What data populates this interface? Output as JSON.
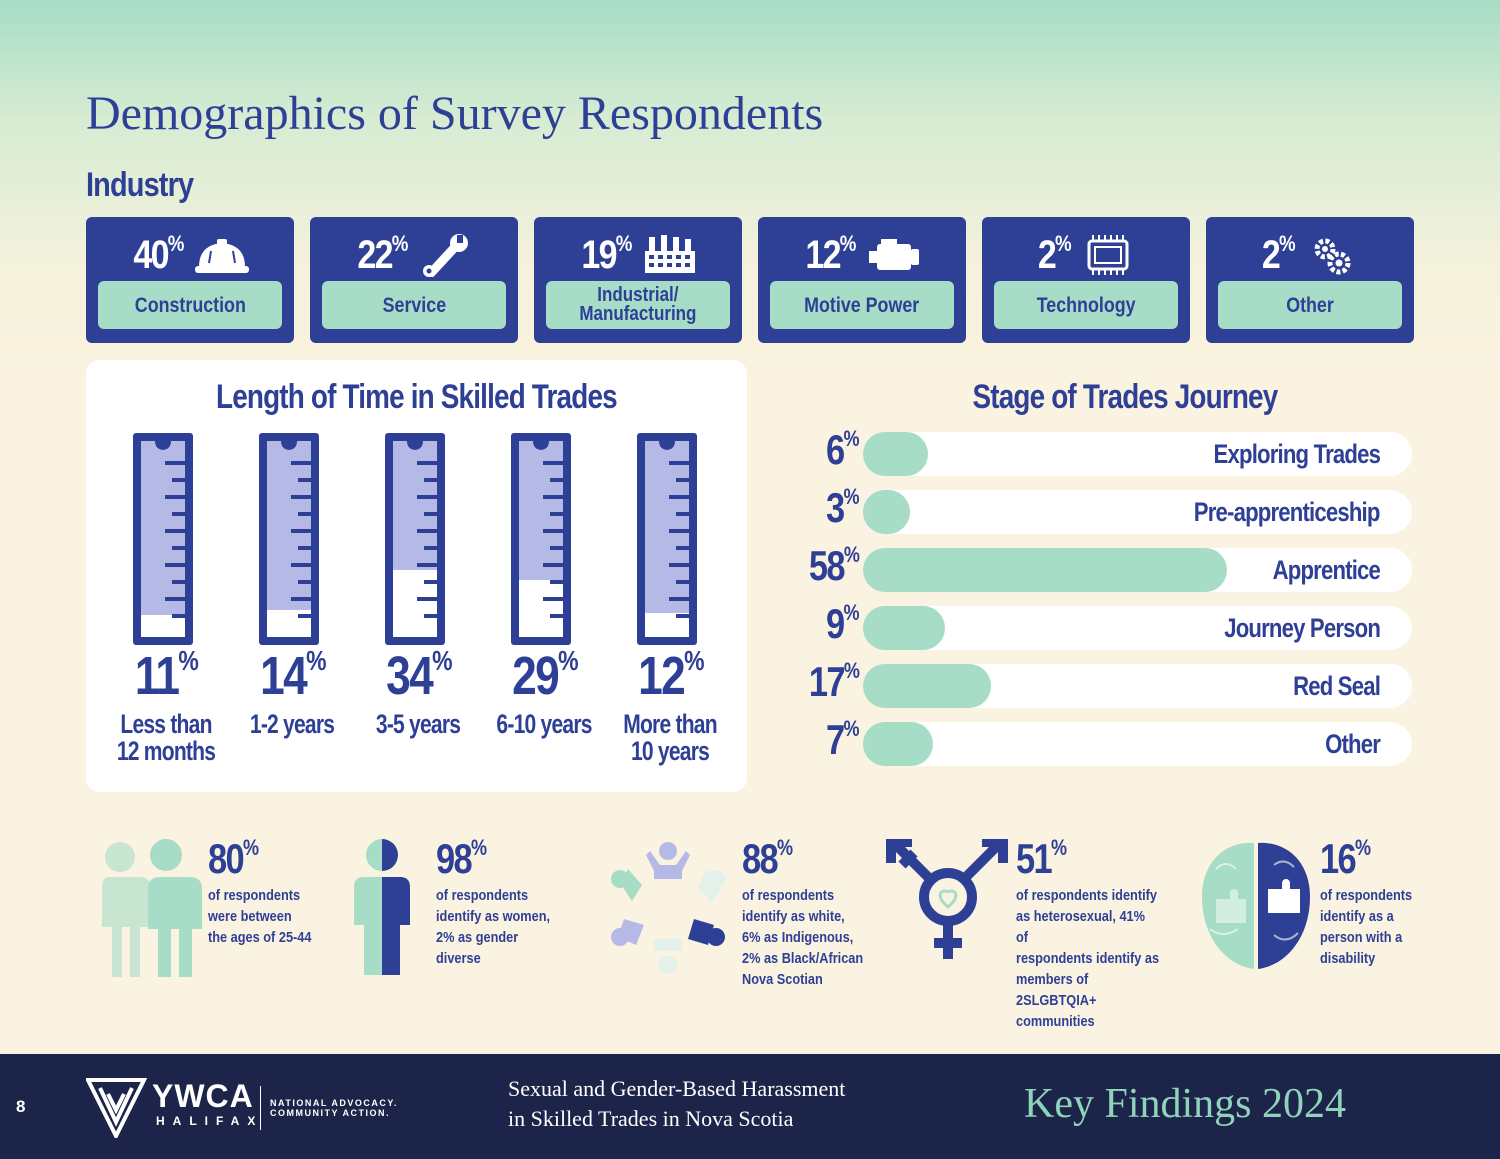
{
  "title": "Demographics of Survey Respondents",
  "industry": {
    "label": "Industry",
    "items": [
      {
        "pct": "40",
        "label": "Construction",
        "icon": "hard-hat-icon"
      },
      {
        "pct": "22",
        "label": "Service",
        "icon": "wrench-icon"
      },
      {
        "pct": "19",
        "label": "Industrial/\nManufacturing",
        "icon": "factory-icon"
      },
      {
        "pct": "12",
        "label": "Motive Power",
        "icon": "engine-icon"
      },
      {
        "pct": "2",
        "label": "Technology",
        "icon": "chip-icon"
      },
      {
        "pct": "2",
        "label": "Other",
        "icon": "gears-icon"
      }
    ]
  },
  "length_of_time": {
    "heading": "Length of Time in Skilled Trades",
    "items": [
      {
        "pct": "11",
        "value": 11,
        "label": "Less than\n12 months"
      },
      {
        "pct": "14",
        "value": 14,
        "label": "1-2 years"
      },
      {
        "pct": "34",
        "value": 34,
        "label": "3-5 years"
      },
      {
        "pct": "29",
        "value": 29,
        "label": "6-10 years"
      },
      {
        "pct": "12",
        "value": 12,
        "label": "More than\n10 years"
      }
    ]
  },
  "stage": {
    "heading": "Stage of Trades Journey",
    "items": [
      {
        "pct": "6",
        "value": 6,
        "label": "Exploring Trades"
      },
      {
        "pct": "3",
        "value": 3,
        "label": "Pre-apprenticeship"
      },
      {
        "pct": "58",
        "value": 58,
        "label": "Apprentice"
      },
      {
        "pct": "9",
        "value": 9,
        "label": "Journey Person"
      },
      {
        "pct": "17",
        "value": 17,
        "label": "Red Seal"
      },
      {
        "pct": "7",
        "value": 7,
        "label": "Other"
      }
    ]
  },
  "stats": [
    {
      "pct": "80",
      "text": "of respondents\nwere between\nthe ages of 25-44",
      "icon": "people-icon"
    },
    {
      "pct": "98",
      "text": "of respondents\nidentify as women,\n2% as gender diverse",
      "icon": "person-half-icon"
    },
    {
      "pct": "88",
      "text": "of respondents\nidentify as white,\n6% as Indigenous,\n2% as Black/African\nNova Scotian",
      "icon": "diverse-circle-icon"
    },
    {
      "pct": "51",
      "text": "of respondents identify\nas heterosexual, 41% of\nrespondents identify as\nmembers of 2SLGBTQIA+\ncommunities",
      "icon": "gender-symbol-icon"
    },
    {
      "pct": "16",
      "text": "of respondents\nidentify as a\nperson with a\ndisability",
      "icon": "brain-puzzle-icon"
    }
  ],
  "footer": {
    "page_number": "8",
    "logo_word": "YWCA",
    "logo_sub": "HALIFAX",
    "logo_tag": "NATIONAL ADVOCACY.\nCOMMUNITY ACTION.",
    "report_title": "Sexual and Gender-Based Harassment\nin Skilled Trades in Nova Scotia",
    "key_findings": "Key Findings 2024"
  },
  "colors": {
    "navy": "#2e3f96",
    "mint": "#a7dcc6",
    "lavender": "#b5b9e6",
    "footer": "#1c2549"
  }
}
